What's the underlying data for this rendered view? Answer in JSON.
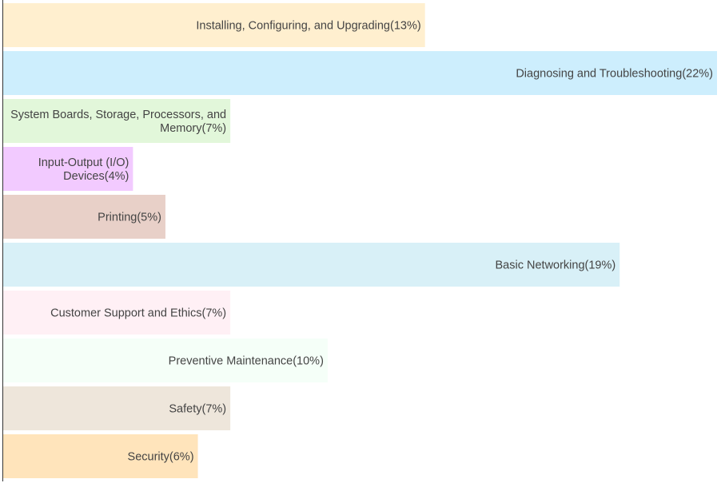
{
  "chart_data": {
    "type": "bar",
    "orientation": "horizontal",
    "categories": [
      "Installing, Configuring, and Upgrading",
      "Diagnosing and Troubleshooting",
      "System Boards, Storage, Processors, and Memory",
      "Input-Output (I/O) Devices",
      "Printing",
      "Basic Networking",
      "Customer Support and Ethics",
      "Preventive Maintenance",
      "Safety",
      "Security"
    ],
    "labels": [
      [
        "Installing, Configuring, and Upgrading(13%)"
      ],
      [
        "Diagnosing and Troubleshooting(22%)"
      ],
      [
        "System Boards, Storage, Processors, and",
        "Memory(7%)"
      ],
      [
        "Input-Output (I/O)",
        "Devices(4%)"
      ],
      [
        "Printing(5%)"
      ],
      [
        "Basic Networking(19%)"
      ],
      [
        "Customer Support and Ethics(7%)"
      ],
      [
        "Preventive Maintenance(10%)"
      ],
      [
        "Safety(7%)"
      ],
      [
        "Security(6%)"
      ]
    ],
    "values": [
      13,
      22,
      7,
      4,
      5,
      19,
      7,
      10,
      7,
      6
    ],
    "colors": [
      "#ffefcf",
      "#cdeefd",
      "#e2f7da",
      "#f2caff",
      "#e8d0c8",
      "#d8f0f7",
      "#fff0f5",
      "#f5fff8",
      "#eee6db",
      "#ffe4bb"
    ],
    "xlim": [
      0,
      22
    ],
    "title": "",
    "xlabel": "",
    "ylabel": "",
    "grid": false,
    "legend": "none"
  }
}
